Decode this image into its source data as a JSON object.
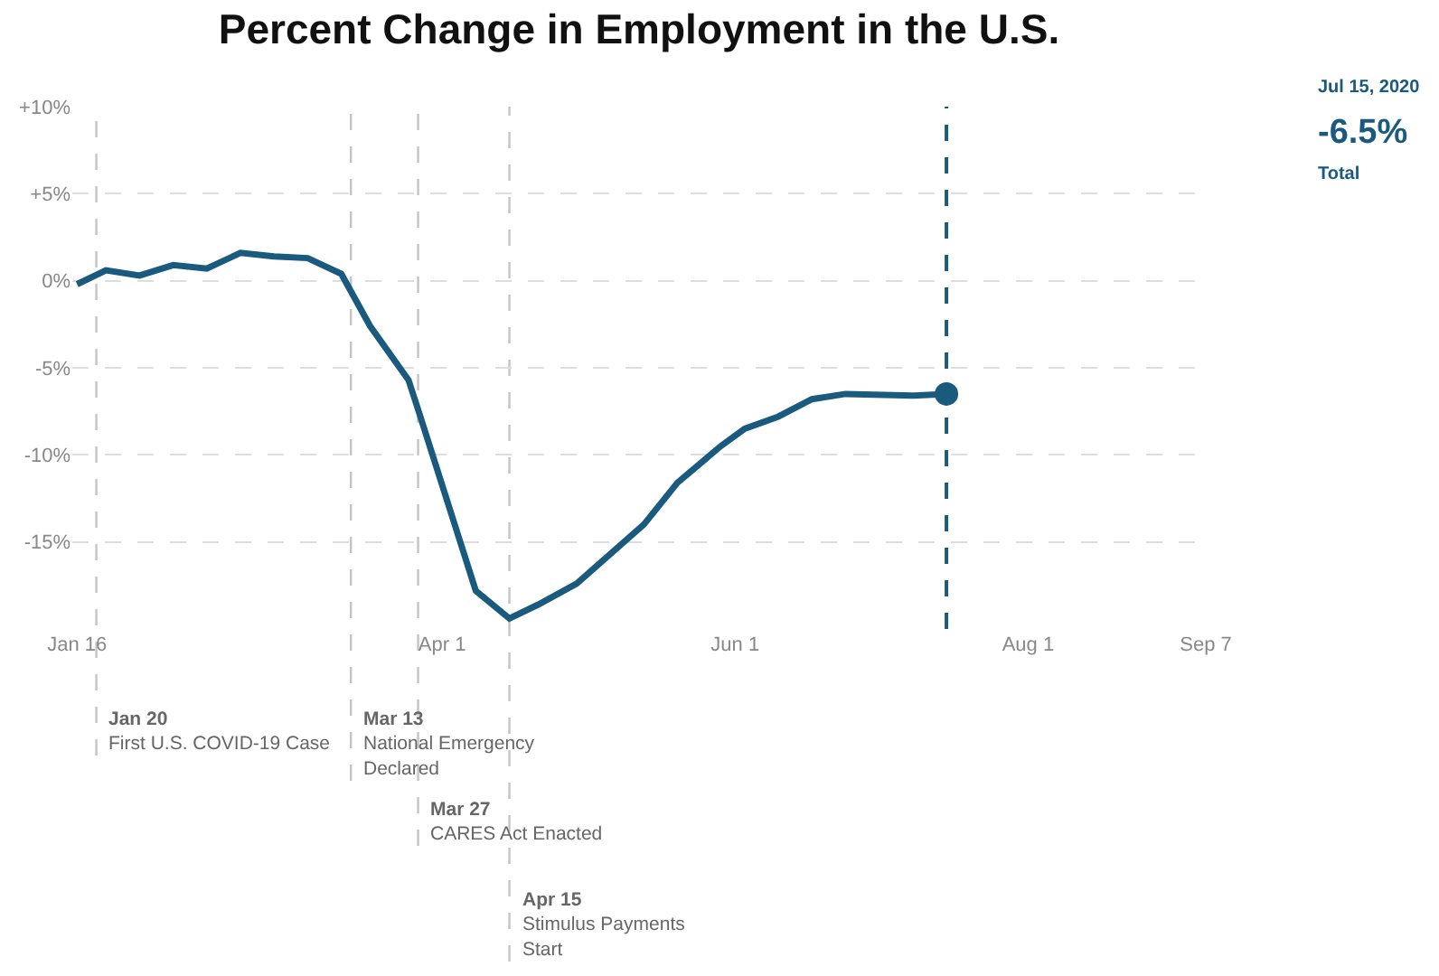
{
  "chart_data": {
    "type": "line",
    "title": "Percent Change in Employment in the U.S.",
    "x": [
      "2020-01-16",
      "2020-01-22",
      "2020-01-29",
      "2020-02-05",
      "2020-02-12",
      "2020-02-19",
      "2020-02-26",
      "2020-03-04",
      "2020-03-11",
      "2020-03-17",
      "2020-03-25",
      "2020-03-27",
      "2020-04-08",
      "2020-04-15",
      "2020-04-21",
      "2020-04-29",
      "2020-05-13",
      "2020-05-20",
      "2020-05-29",
      "2020-06-03",
      "2020-06-10",
      "2020-06-17",
      "2020-06-24",
      "2020-07-08",
      "2020-07-15"
    ],
    "series": [
      {
        "color": "#1a5a7e",
        "values": [
          -0.2,
          0.6,
          0.3,
          0.9,
          0.7,
          1.6,
          1.4,
          1.3,
          0.4,
          -2.6,
          -5.7,
          -7.4,
          -17.8,
          -19.4,
          -18.6,
          -17.4,
          -14,
          -11.6,
          -9.5,
          -8.5,
          -7.8,
          -6.8,
          -6.5,
          -6.6,
          -6.5
        ],
        "marker": "none",
        "line_style": "solid"
      },
      {
        "type": "scatter",
        "color": "#1a5a7e",
        "x": [
          "2020-07-15"
        ],
        "values": [
          -6.5
        ],
        "marker": "circle"
      }
    ],
    "xlim": [
      "2020-01-15",
      "2020-09-07"
    ],
    "xticks": [
      {
        "value": "2020-01-16",
        "label": "Jan 16"
      },
      {
        "value": "2020-04-01",
        "label": "Apr 1"
      },
      {
        "value": "2020-06-01",
        "label": "Jun 1"
      },
      {
        "value": "2020-08-01",
        "label": "Aug 1"
      },
      {
        "value": "2020-09-07",
        "label": "Sep 7"
      }
    ],
    "ylim": [
      -20,
      10
    ],
    "yticks": [
      {
        "value": -15,
        "label": "-15%"
      },
      {
        "value": -10,
        "label": "-10%"
      },
      {
        "value": -5,
        "label": "-5%"
      },
      {
        "value": 0,
        "label": "0%"
      },
      {
        "value": 5,
        "label": "+5%"
      },
      {
        "value": 10,
        "label": "+10%"
      }
    ],
    "grid": "y",
    "ref_lines": [
      {
        "axis": "x",
        "value": "2020-01-20",
        "label": "Jan 20\nFirst U.S. COVID-19 Case",
        "color": "#c4c4c4",
        "line_style": "dashed"
      },
      {
        "axis": "x",
        "value": "2020-03-13",
        "label": "Mar 13\nNational Emergency\nDeclared",
        "color": "#c4c4c4",
        "line_style": "dashed"
      },
      {
        "axis": "x",
        "value": "2020-03-27",
        "label": "Mar 27\nCARES Act Enacted",
        "color": "#c4c4c4",
        "line_style": "dashed"
      },
      {
        "axis": "x",
        "value": "2020-04-15",
        "label": "Apr 15\nStimulus Payments\nStart",
        "color": "#c4c4c4",
        "line_style": "dashed"
      },
      {
        "axis": "x",
        "value": "2020-07-15",
        "label": null,
        "color": "#1a5a7e",
        "line_style": "dashed"
      }
    ],
    "annotations": [
      "Jul 15, 2020\n-6.5%\nTotal"
    ]
  }
}
